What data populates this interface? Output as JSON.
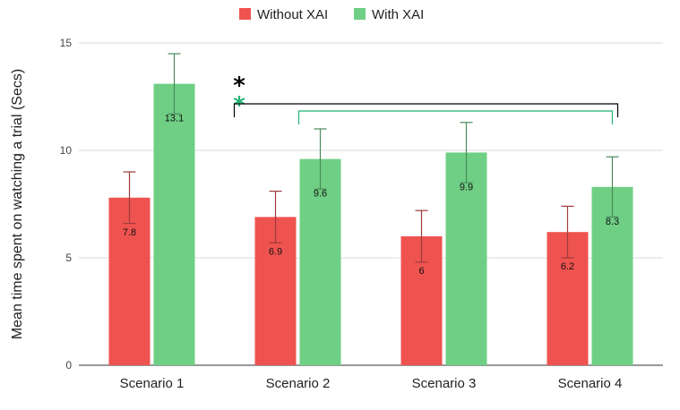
{
  "chart_data": {
    "type": "bar",
    "title": "",
    "xlabel": "",
    "ylabel": "Mean time spent on watching a trial (Secs)",
    "ylim": [
      0,
      15
    ],
    "yticks": [
      0,
      5,
      10,
      15
    ],
    "grid": true,
    "legend_position": "top-center",
    "categories": [
      "Scenario 1",
      "Scenario 2",
      "Scenario 3",
      "Scenario 4"
    ],
    "series": [
      {
        "name": "Without XAI",
        "color": "#ef5350",
        "values": [
          7.8,
          6.9,
          6,
          6.2
        ],
        "labels": [
          "7.8",
          "6.9",
          "6",
          "6.2"
        ],
        "error_low": [
          6.6,
          5.7,
          4.8,
          5.0
        ],
        "error_high": [
          9.0,
          8.1,
          7.2,
          7.4
        ]
      },
      {
        "name": "With XAI",
        "color": "#6fcf85",
        "values": [
          13.1,
          9.6,
          9.9,
          8.3
        ],
        "labels": [
          "13.1",
          "9.6",
          "9.9",
          "8.3"
        ],
        "error_low": [
          11.7,
          8.2,
          8.5,
          6.9
        ],
        "error_high": [
          14.5,
          11.0,
          11.3,
          9.7
        ]
      }
    ],
    "annotations": {
      "significance": [
        {
          "symbol": "*",
          "color": "#000000"
        },
        {
          "symbol": "*",
          "color": "#22b573"
        }
      ],
      "brackets": [
        {
          "color": "#000000",
          "from": "Scenario 2",
          "to": "Scenario 4",
          "series": "Without XAI"
        },
        {
          "color": "#22b573",
          "from": "Scenario 2",
          "to": "Scenario 4",
          "series": "With XAI"
        }
      ]
    }
  }
}
